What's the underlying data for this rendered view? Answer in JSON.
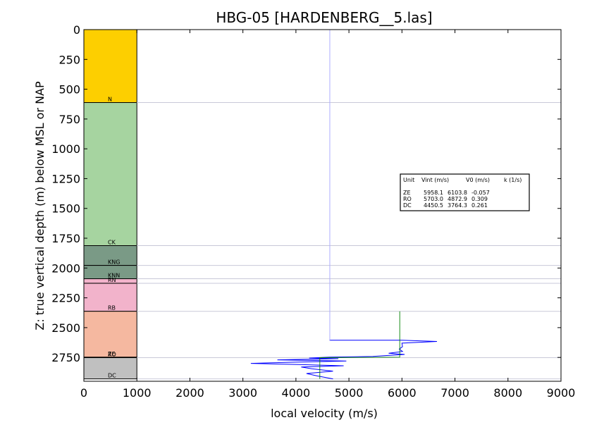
{
  "chart_data": {
    "type": "line",
    "title": "HBG-05 [HARDENBERG__5.las]",
    "xlabel": "local velocity (m/s)",
    "ylabel": "Z: true vertical depth (m) below MSL or NAP",
    "xlim": [
      0,
      9000
    ],
    "ylim": [
      2950,
      0
    ],
    "y_inverted": true,
    "x_ticks": [
      "0",
      "1000",
      "2000",
      "3000",
      "4000",
      "5000",
      "6000",
      "7000",
      "8000",
      "9000"
    ],
    "y_ticks": [
      "0",
      "250",
      "500",
      "750",
      "1000",
      "1250",
      "1500",
      "1750",
      "2000",
      "2250",
      "2500",
      "2750"
    ],
    "grid": false,
    "strat_units": [
      {
        "label": "N",
        "top": 0,
        "base": 612,
        "color": "#fdcf00"
      },
      {
        "label": "CK",
        "top": 612,
        "base": 1812,
        "color": "#a6d4a0"
      },
      {
        "label": "KNG",
        "top": 1812,
        "base": 1978,
        "color": "#7a9a86"
      },
      {
        "label": "KNN",
        "top": 1978,
        "base": 2090,
        "color": "#7a9a86"
      },
      {
        "label": "RN",
        "top": 2090,
        "base": 2128,
        "color": "#f2b3cb"
      },
      {
        "label": "RB",
        "top": 2128,
        "base": 2363,
        "color": "#f2b3cb"
      },
      {
        "label": "ZE",
        "top": 2363,
        "base": 2748,
        "color": "#f5b8a0"
      },
      {
        "label": "RO",
        "top": 2748,
        "base": 2752,
        "color": "#f5b8a0"
      },
      {
        "label": "DC",
        "top": 2752,
        "base": 2930,
        "color": "#c0c0c0"
      }
    ],
    "formation_top_lines": [
      612,
      1812,
      1978,
      2090,
      2128,
      2363,
      2752,
      2930
    ],
    "series": [
      {
        "name": "",
        "color": "#0000ff",
        "x": [
          4640,
          4640,
          6000,
          6660,
          6000,
          6010,
          5950,
          6010,
          5750,
          6050,
          5450,
          4630,
          4250,
          4800,
          3650,
          4950,
          4000,
          3150,
          4050,
          4900,
          4100,
          4300,
          4700,
          4200,
          4400,
          4700
        ],
        "y": [
          0,
          2606,
          2606,
          2616,
          2630,
          2660,
          2680,
          2700,
          2715,
          2725,
          2742,
          2748,
          2755,
          2760,
          2770,
          2780,
          2790,
          2800,
          2810,
          2820,
          2830,
          2845,
          2865,
          2885,
          2905,
          2930
        ]
      },
      {
        "name": "",
        "color": "#008000",
        "x": [
          5958.1,
          5958.1,
          4450.5,
          4450.5
        ],
        "y": [
          2363,
          2748,
          2752,
          2930
        ]
      }
    ],
    "info_table": {
      "headers": [
        "Unit",
        "Vint (m/s)",
        "V0 (m/s)",
        "k (1/s)"
      ],
      "rows": [
        [
          "ZE",
          "5958.1",
          "6103.8",
          "-0.057"
        ],
        [
          "RO",
          "5703.0",
          "4872.9",
          "0.309"
        ],
        [
          "DC",
          "4450.5",
          "3764.3",
          "0.261"
        ]
      ]
    }
  }
}
